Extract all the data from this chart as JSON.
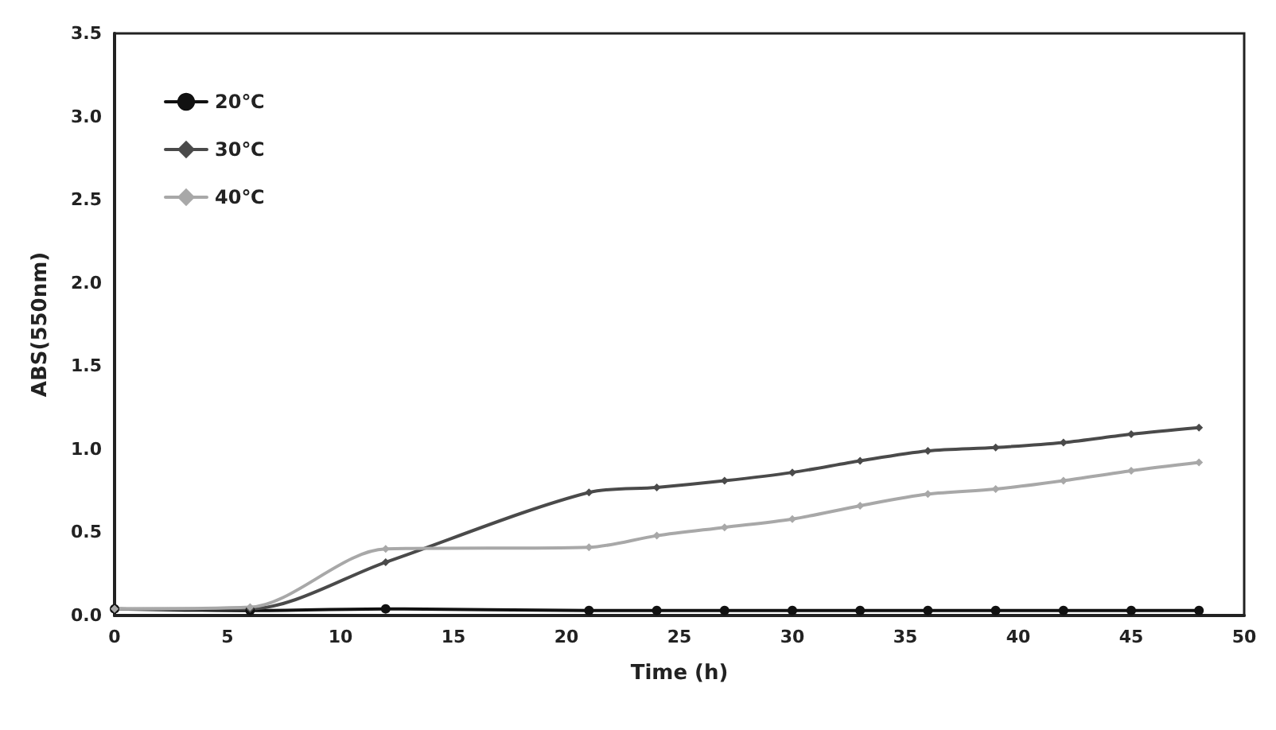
{
  "chart_data": {
    "type": "line",
    "xlabel": "Time (h)",
    "ylabel": "ABS(550nm)",
    "x": [
      0,
      6,
      12,
      21,
      24,
      27,
      30,
      33,
      36,
      39,
      42,
      45,
      48
    ],
    "series": [
      {
        "name": "20℃",
        "color": "#111111",
        "marker": "circle",
        "values": [
          0.04,
          0.03,
          0.04,
          0.03,
          0.03,
          0.03,
          0.03,
          0.03,
          0.03,
          0.03,
          0.03,
          0.03,
          0.03
        ]
      },
      {
        "name": "30℃",
        "color": "#4a4a4a",
        "marker": "diamond",
        "values": [
          0.04,
          0.04,
          0.32,
          0.74,
          0.77,
          0.81,
          0.86,
          0.93,
          0.99,
          1.01,
          1.04,
          1.09,
          1.13
        ]
      },
      {
        "name": "40℃",
        "color": "#a8a8a8",
        "marker": "diamond",
        "values": [
          0.04,
          0.05,
          0.4,
          0.41,
          0.48,
          0.53,
          0.58,
          0.66,
          0.73,
          0.76,
          0.81,
          0.87,
          0.92
        ]
      }
    ],
    "xlim": [
      0,
      50
    ],
    "xticks": [
      0,
      5,
      10,
      15,
      20,
      25,
      30,
      35,
      40,
      45,
      50
    ],
    "ylim": [
      0,
      3.5
    ],
    "yticks": [
      {
        "value": 0,
        "label": "0.0"
      },
      0.5,
      {
        "value": 1,
        "label": "1.0"
      },
      1.5,
      {
        "value": 2,
        "label": "2.0"
      },
      2.5,
      {
        "value": 3,
        "label": "3.0"
      },
      3.5
    ],
    "grid": false,
    "legend": "top left",
    "line_style": "solid"
  }
}
